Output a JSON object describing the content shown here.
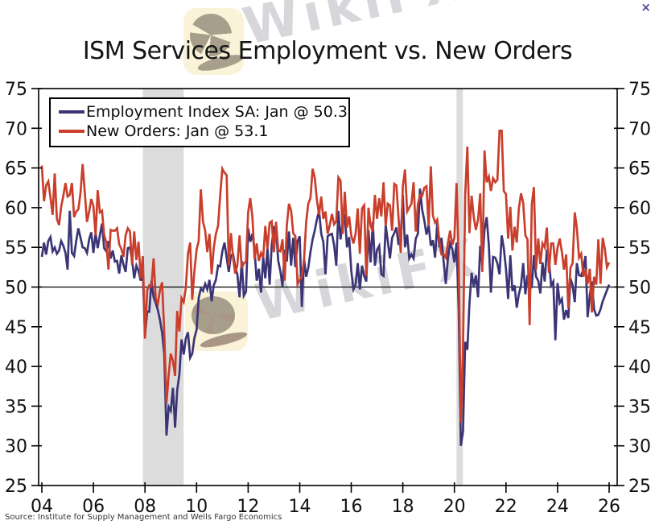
{
  "page": {
    "close_label": "×"
  },
  "header": {
    "title": "ISM Services Employment vs. New Orders"
  },
  "watermark": {
    "text": "WikiFX"
  },
  "legend": {
    "items": [
      {
        "label": "Employment Index SA: Jan @ 50.3",
        "color": "#3b3576"
      },
      {
        "label": "New Orders: Jan @ 53.1",
        "color": "#c93f2c"
      }
    ]
  },
  "footer": {
    "source": "Source: Institute for Supply Management and Wells Fargo Economics"
  },
  "chart_data": {
    "type": "line",
    "title": "ISM Services Employment vs. New Orders",
    "x_unit": "monthly, Jan 2004 through Jan 2026",
    "x_tick_labels": [
      "04",
      "06",
      "08",
      "10",
      "12",
      "14",
      "16",
      "18",
      "20",
      "22",
      "24",
      "26"
    ],
    "x_tick_years": [
      2004,
      2006,
      2008,
      2010,
      2012,
      2014,
      2016,
      2018,
      2020,
      2022,
      2024,
      2026
    ],
    "ylim": [
      25,
      75
    ],
    "y_ticks": [
      25,
      30,
      35,
      40,
      45,
      50,
      55,
      60,
      65,
      70,
      75
    ],
    "grid": false,
    "legend_position": "top-left",
    "reference_line_y": 50,
    "band_color": "#dcdcdc",
    "recession_bands_years": [
      [
        2007.92,
        2009.5
      ],
      [
        2020.08,
        2020.33
      ]
    ],
    "series": [
      {
        "name": "Employment Index SA",
        "last_label": "Jan @ 50.3",
        "color": "#3b3576",
        "values": [
          53.8,
          55.6,
          54.1,
          55.8,
          56.3,
          54.5,
          55.0,
          54.2,
          54.6,
          55.8,
          55.2,
          54.3,
          52.2,
          59.6,
          54.3,
          53.9,
          55.8,
          57.4,
          56.2,
          55.0,
          54.9,
          54.3,
          56.0,
          56.9,
          54.3,
          56.8,
          54.9,
          56.5,
          58.0,
          54.9,
          54.5,
          55.8,
          53.6,
          54.6,
          53.2,
          53.3,
          51.7,
          54.0,
          52.8,
          51.9,
          54.9,
          55.0,
          53.4,
          51.1,
          52.7,
          52.0,
          50.8,
          51.8,
          43.9,
          46.9,
          46.9,
          50.8,
          48.7,
          48.0,
          47.1,
          45.8,
          44.2,
          41.5,
          31.3,
          34.9,
          34.4,
          37.3,
          32.3,
          37.0,
          39.0,
          43.4,
          41.5,
          43.5,
          44.3,
          41.1,
          41.6,
          43.6,
          44.6,
          48.6,
          49.8,
          49.5,
          50.4,
          49.7,
          50.9,
          48.2,
          50.2,
          50.9,
          52.7,
          52.6,
          54.5,
          55.6,
          53.7,
          51.9,
          54.0,
          54.1,
          52.5,
          51.6,
          48.7,
          53.3,
          48.9,
          49.4,
          57.4,
          55.7,
          56.7,
          54.6,
          50.8,
          52.3,
          49.3,
          53.8,
          51.1,
          54.9,
          50.3,
          55.3,
          57.5,
          57.2,
          53.3,
          52.0,
          50.1,
          54.7,
          53.2,
          57.0,
          52.7,
          56.2,
          52.5,
          55.8,
          56.4,
          47.5,
          53.6,
          51.3,
          52.4,
          54.4,
          56.0,
          57.1,
          58.5,
          59.6,
          56.7,
          55.7,
          51.6,
          56.4,
          56.6,
          56.7,
          55.3,
          52.7,
          59.6,
          56.0,
          58.3,
          59.2,
          55.0,
          56.3,
          52.1,
          49.7,
          50.3,
          53.0,
          49.7,
          52.7,
          51.4,
          50.7,
          57.2,
          53.1,
          58.2,
          52.7,
          54.7,
          55.2,
          51.6,
          51.4,
          57.8,
          55.8,
          53.6,
          56.2,
          56.8,
          57.5,
          55.3,
          56.3,
          61.6,
          55.0,
          56.6,
          53.6,
          54.1,
          53.6,
          56.1,
          56.7,
          62.4,
          59.7,
          58.4,
          56.6,
          57.8,
          55.2,
          55.9,
          53.7,
          58.1,
          55.0,
          56.2,
          53.1,
          50.4,
          53.7,
          55.5,
          54.8,
          53.1,
          55.6,
          47.0,
          30.0,
          31.8,
          43.1,
          42.1,
          47.9,
          51.8,
          50.1,
          51.5,
          48.7,
          55.2,
          52.7,
          57.2,
          58.8,
          55.3,
          49.3,
          53.8,
          53.7,
          53.0,
          51.6,
          56.5,
          54.9,
          52.3,
          48.5,
          54.0,
          49.5,
          50.2,
          47.4,
          49.1,
          50.2,
          53.0,
          49.1,
          51.5,
          49.8,
          50.0,
          54.0,
          51.3,
          50.8,
          49.2,
          53.1,
          50.7,
          54.7,
          53.4,
          50.2,
          50.7,
          43.3,
          50.5,
          48.0,
          48.5,
          45.9,
          47.1,
          46.1,
          51.1,
          50.2,
          48.1,
          53.0,
          51.5,
          51.4,
          52.3,
          53.9,
          46.2,
          49.0,
          50.7,
          47.2,
          46.4,
          46.5,
          47.2,
          48.2,
          48.9,
          49.6,
          50.3
        ]
      },
      {
        "name": "New Orders",
        "last_label": "Jan @ 53.1",
        "color": "#c93f2c",
        "values": [
          65.3,
          60.8,
          62.8,
          63.3,
          61.3,
          59.1,
          64.3,
          58.6,
          57.8,
          60.1,
          61.5,
          63.1,
          61.4,
          61.6,
          63.1,
          58.8,
          59.5,
          59.8,
          61.9,
          65.5,
          61.9,
          58.2,
          59.5,
          61.1,
          60.2,
          56.5,
          62.2,
          59.4,
          59.6,
          56.6,
          55.6,
          52.2,
          57.2,
          57.1,
          57.1,
          57.4,
          55.4,
          54.8,
          53.8,
          56.5,
          57.4,
          57.0,
          52.8,
          57.0,
          53.4,
          55.7,
          51.1,
          53.9,
          43.5,
          49.6,
          50.2,
          50.1,
          53.6,
          48.6,
          47.9,
          49.7,
          50.6,
          44.0,
          35.4,
          38.9,
          41.6,
          40.7,
          38.8,
          47.0,
          44.4,
          48.6,
          48.1,
          49.9,
          54.2,
          55.6,
          48.4,
          52.0,
          54.7,
          55.8,
          62.3,
          58.2,
          57.1,
          54.4,
          56.7,
          51.6,
          54.9,
          56.7,
          57.7,
          61.5,
          64.9,
          64.4,
          64.1,
          52.7,
          56.8,
          53.6,
          51.7,
          52.8,
          56.5,
          52.4,
          53.0,
          53.2,
          59.4,
          61.2,
          58.8,
          53.5,
          55.5,
          53.3,
          54.3,
          53.7,
          57.7,
          54.8,
          58.1,
          58.3,
          54.4,
          58.2,
          54.6,
          54.5,
          56.0,
          50.8,
          57.7,
          60.5,
          59.6,
          56.8,
          56.4,
          50.4,
          50.9,
          51.3,
          53.4,
          58.2,
          60.5,
          61.2,
          64.9,
          63.8,
          61.0,
          59.1,
          61.4,
          58.6,
          59.5,
          56.7,
          57.8,
          59.2,
          57.9,
          58.3,
          63.8,
          63.4,
          56.7,
          62.0,
          57.5,
          58.9,
          56.5,
          55.5,
          56.7,
          59.9,
          54.2,
          59.9,
          60.3,
          51.4,
          60.0,
          57.7,
          57.0,
          61.6,
          58.6,
          61.2,
          58.9,
          63.2,
          57.7,
          60.5,
          60.3,
          57.1,
          63.0,
          62.8,
          58.7,
          54.3,
          62.7,
          64.8,
          59.5,
          60.0,
          60.5,
          63.2,
          57.0,
          60.4,
          61.6,
          61.5,
          62.5,
          62.7,
          57.7,
          65.2,
          59.0,
          58.1,
          58.5,
          55.8,
          54.1,
          54.1,
          53.7,
          55.6,
          57.1,
          55.3,
          56.2,
          63.1,
          52.9,
          32.9,
          41.9,
          61.6,
          67.7,
          56.8,
          61.5,
          58.8,
          57.2,
          58.5,
          61.8,
          51.9,
          67.2,
          63.2,
          63.9,
          62.1,
          63.7,
          63.2,
          63.5,
          69.7,
          69.7,
          62.1,
          61.7,
          56.1,
          60.1,
          54.6,
          57.6,
          55.6,
          59.9,
          61.8,
          60.6,
          56.5,
          56.0,
          45.2,
          60.4,
          62.6,
          52.2,
          56.1,
          52.9,
          55.5,
          55.0,
          57.5,
          51.8,
          55.5,
          55.5,
          52.8,
          55.0,
          56.1,
          54.4,
          52.2,
          54.1,
          47.3,
          52.4,
          53.0,
          59.4,
          57.4,
          53.7,
          54.2,
          51.3,
          52.2,
          50.4,
          52.3,
          46.8,
          51.3,
          50.3,
          56.0,
          50.4,
          56.2,
          54.8,
          52.5,
          53.1
        ]
      }
    ]
  }
}
